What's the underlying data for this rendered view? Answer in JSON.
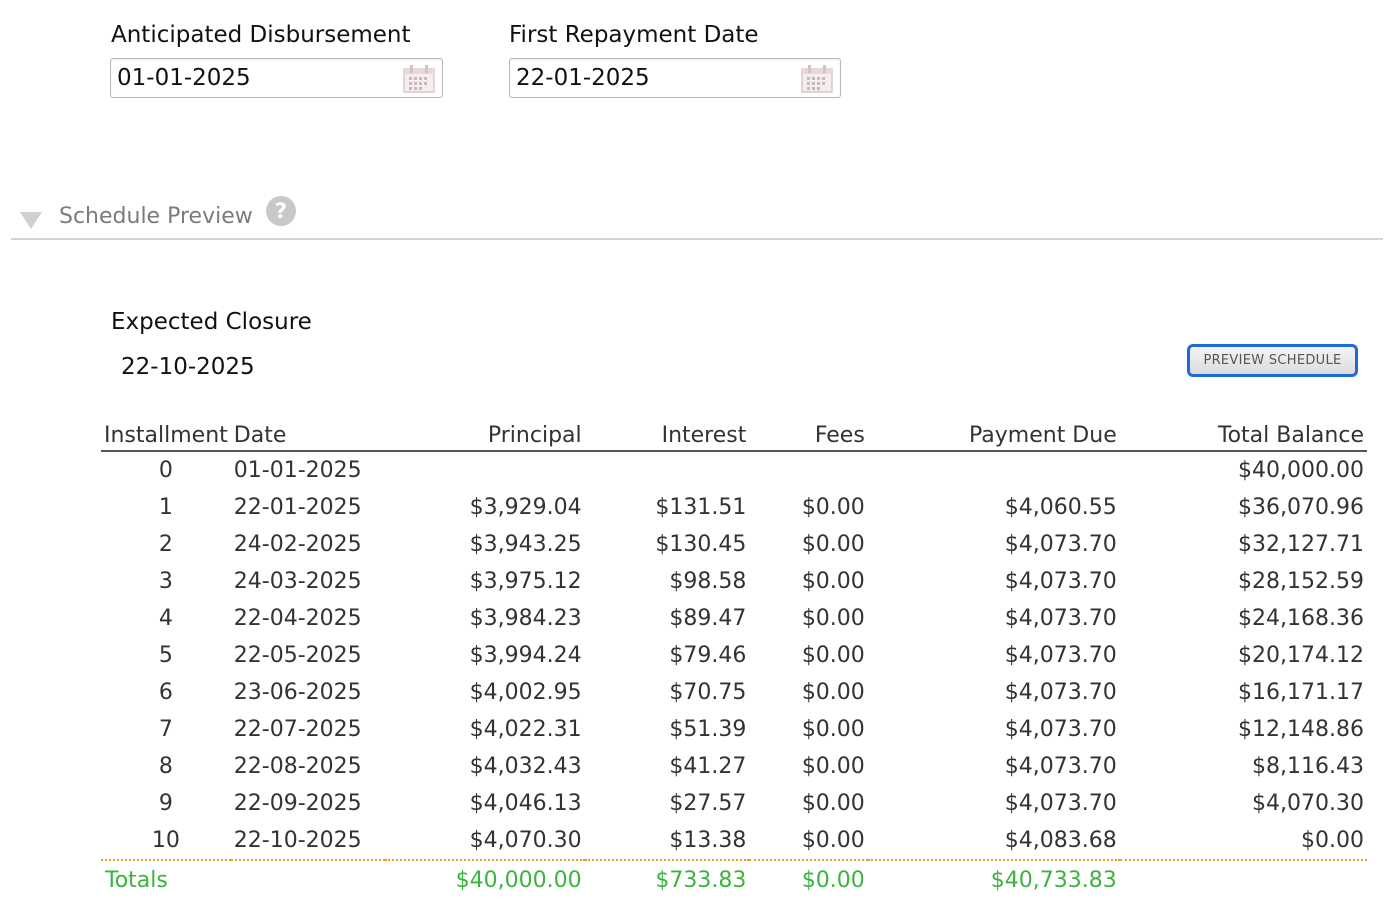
{
  "disbursement": {
    "label": "Anticipated Disbursement",
    "value": "01-01-2025",
    "icon": "calendar-icon"
  },
  "first_repayment": {
    "label": "First Repayment Date",
    "value": "22-01-2025",
    "icon": "calendar-icon"
  },
  "section": {
    "title": "Schedule Preview",
    "collapse_icon": "triangle-down-icon",
    "help_icon": "question-circle-icon"
  },
  "closure": {
    "label": "Expected Closure",
    "value": "22-10-2025"
  },
  "preview_button": {
    "label": "PREVIEW SCHEDULE"
  },
  "table": {
    "headers": {
      "installment": "Installment",
      "date": "Date",
      "principal": "Principal",
      "interest": "Interest",
      "fees": "Fees",
      "payment_due": "Payment Due",
      "total_balance": "Total Balance"
    },
    "rows": [
      {
        "installment": "0",
        "date": "01-01-2025",
        "principal": "",
        "interest": "",
        "fees": "",
        "payment_due": "",
        "total_balance": "$40,000.00"
      },
      {
        "installment": "1",
        "date": "22-01-2025",
        "principal": "$3,929.04",
        "interest": "$131.51",
        "fees": "$0.00",
        "payment_due": "$4,060.55",
        "total_balance": "$36,070.96"
      },
      {
        "installment": "2",
        "date": "24-02-2025",
        "principal": "$3,943.25",
        "interest": "$130.45",
        "fees": "$0.00",
        "payment_due": "$4,073.70",
        "total_balance": "$32,127.71"
      },
      {
        "installment": "3",
        "date": "24-03-2025",
        "principal": "$3,975.12",
        "interest": "$98.58",
        "fees": "$0.00",
        "payment_due": "$4,073.70",
        "total_balance": "$28,152.59"
      },
      {
        "installment": "4",
        "date": "22-04-2025",
        "principal": "$3,984.23",
        "interest": "$89.47",
        "fees": "$0.00",
        "payment_due": "$4,073.70",
        "total_balance": "$24,168.36"
      },
      {
        "installment": "5",
        "date": "22-05-2025",
        "principal": "$3,994.24",
        "interest": "$79.46",
        "fees": "$0.00",
        "payment_due": "$4,073.70",
        "total_balance": "$20,174.12"
      },
      {
        "installment": "6",
        "date": "23-06-2025",
        "principal": "$4,002.95",
        "interest": "$70.75",
        "fees": "$0.00",
        "payment_due": "$4,073.70",
        "total_balance": "$16,171.17"
      },
      {
        "installment": "7",
        "date": "22-07-2025",
        "principal": "$4,022.31",
        "interest": "$51.39",
        "fees": "$0.00",
        "payment_due": "$4,073.70",
        "total_balance": "$12,148.86"
      },
      {
        "installment": "8",
        "date": "22-08-2025",
        "principal": "$4,032.43",
        "interest": "$41.27",
        "fees": "$0.00",
        "payment_due": "$4,073.70",
        "total_balance": "$8,116.43"
      },
      {
        "installment": "9",
        "date": "22-09-2025",
        "principal": "$4,046.13",
        "interest": "$27.57",
        "fees": "$0.00",
        "payment_due": "$4,073.70",
        "total_balance": "$4,070.30"
      },
      {
        "installment": "10",
        "date": "22-10-2025",
        "principal": "$4,070.30",
        "interest": "$13.38",
        "fees": "$0.00",
        "payment_due": "$4,083.68",
        "total_balance": "$0.00"
      }
    ],
    "totals": {
      "label": "Totals",
      "principal": "$40,000.00",
      "interest": "$733.83",
      "fees": "$0.00",
      "payment_due": "$40,733.83",
      "total_balance": ""
    }
  },
  "colors": {
    "installment_number": "#e00000",
    "totals": "#3cb43c",
    "totals_divider": "#e0a020",
    "button_border": "#1e6bd6",
    "section_title": "#7b7b7b"
  }
}
